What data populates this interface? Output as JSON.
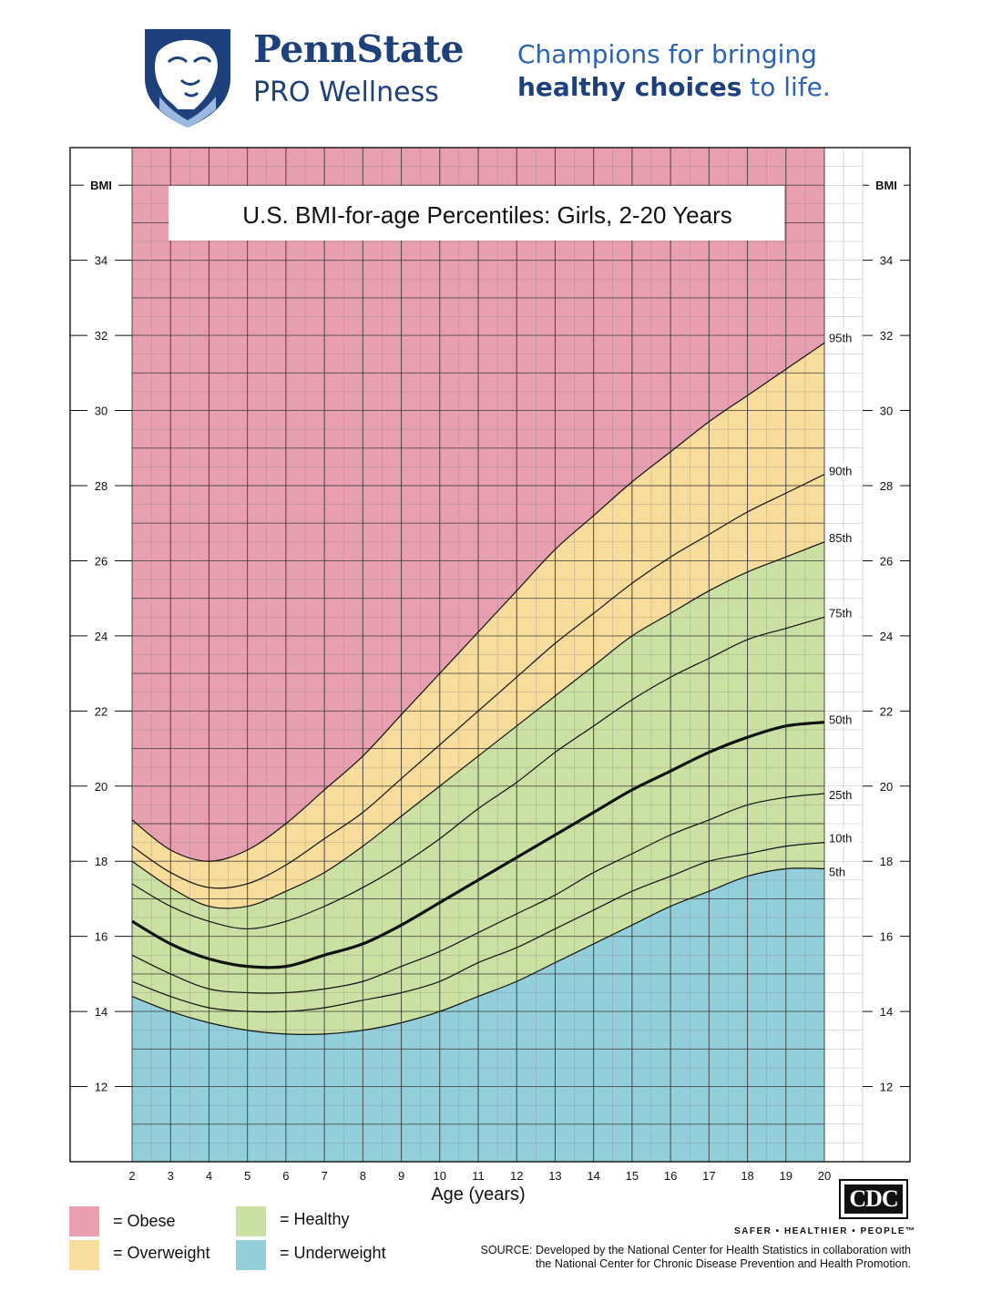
{
  "header": {
    "brand_name": "PennState",
    "brand_sub": "PRO Wellness",
    "tagline_line1": "Champions for bringing",
    "tagline_bold": "healthy choices",
    "tagline_rest": " to life."
  },
  "colors": {
    "obese": "#e8a0b0",
    "overweight": "#f7dc9c",
    "healthy": "#cbe1a3",
    "underweight": "#93cfdb",
    "brand_blue": "#1e407c"
  },
  "legend": [
    {
      "key": "obese",
      "label": "= Obese"
    },
    {
      "key": "overweight",
      "label": "= Overweight"
    },
    {
      "key": "healthy",
      "label": "= Healthy"
    },
    {
      "key": "underweight",
      "label": "= Underweight"
    }
  ],
  "footer": {
    "cdc_logo_text": "CDC",
    "cdc_slogan": "SAFER • HEALTHIER • PEOPLE™",
    "source_line1": "SOURCE: Developed by the National Center for Health Statistics in collaboration with",
    "source_line2": "the National Center for Chronic Disease Prevention and Health Promotion."
  },
  "chart_data": {
    "type": "area",
    "title": "U.S. BMI-for-age Percentiles: Girls, 2-20 Years",
    "xlabel": "Age (years)",
    "ylabel_left": "BMI",
    "ylabel_right": "BMI",
    "xlim": [
      2,
      20
    ],
    "ylim": [
      10,
      37
    ],
    "x_ticks": [
      2,
      3,
      4,
      5,
      6,
      7,
      8,
      9,
      10,
      11,
      12,
      13,
      14,
      15,
      16,
      17,
      18,
      19,
      20
    ],
    "y_ticks": [
      12,
      14,
      16,
      18,
      20,
      22,
      24,
      26,
      28,
      30,
      32,
      34
    ],
    "grid": true,
    "x": [
      2,
      3,
      4,
      5,
      6,
      7,
      8,
      9,
      10,
      11,
      12,
      13,
      14,
      15,
      16,
      17,
      18,
      19,
      20
    ],
    "series": [
      {
        "name": "95th",
        "values": [
          19.1,
          18.3,
          18.0,
          18.3,
          19.0,
          19.9,
          20.8,
          21.9,
          23.0,
          24.1,
          25.2,
          26.3,
          27.2,
          28.1,
          28.9,
          29.7,
          30.4,
          31.1,
          31.8
        ]
      },
      {
        "name": "90th",
        "values": [
          18.4,
          17.7,
          17.3,
          17.4,
          17.9,
          18.6,
          19.3,
          20.2,
          21.1,
          22.0,
          22.9,
          23.8,
          24.6,
          25.4,
          26.1,
          26.7,
          27.3,
          27.8,
          28.3
        ]
      },
      {
        "name": "85th",
        "values": [
          18.0,
          17.3,
          16.8,
          16.8,
          17.2,
          17.7,
          18.4,
          19.2,
          20.0,
          20.8,
          21.6,
          22.4,
          23.2,
          24.0,
          24.6,
          25.2,
          25.7,
          26.1,
          26.5
        ]
      },
      {
        "name": "75th",
        "values": [
          17.4,
          16.8,
          16.4,
          16.2,
          16.4,
          16.8,
          17.3,
          17.9,
          18.6,
          19.4,
          20.1,
          20.9,
          21.6,
          22.3,
          22.9,
          23.4,
          23.9,
          24.2,
          24.5
        ]
      },
      {
        "name": "50th",
        "values": [
          16.4,
          15.8,
          15.4,
          15.2,
          15.2,
          15.5,
          15.8,
          16.3,
          16.9,
          17.5,
          18.1,
          18.7,
          19.3,
          19.9,
          20.4,
          20.9,
          21.3,
          21.6,
          21.7
        ]
      },
      {
        "name": "25th",
        "values": [
          15.5,
          15.0,
          14.6,
          14.5,
          14.5,
          14.6,
          14.8,
          15.2,
          15.6,
          16.1,
          16.6,
          17.1,
          17.7,
          18.2,
          18.7,
          19.1,
          19.5,
          19.7,
          19.8
        ]
      },
      {
        "name": "10th",
        "values": [
          14.8,
          14.4,
          14.1,
          14.0,
          14.0,
          14.1,
          14.3,
          14.5,
          14.8,
          15.3,
          15.7,
          16.2,
          16.7,
          17.2,
          17.6,
          18.0,
          18.2,
          18.4,
          18.5
        ]
      },
      {
        "name": "5th",
        "values": [
          14.4,
          14.0,
          13.7,
          13.5,
          13.4,
          13.4,
          13.5,
          13.7,
          14.0,
          14.4,
          14.8,
          15.3,
          15.8,
          16.3,
          16.8,
          17.2,
          17.6,
          17.8,
          17.8
        ]
      }
    ],
    "zones": [
      {
        "name": "Obese",
        "from": "95th",
        "to": "top"
      },
      {
        "name": "Overweight",
        "from": "85th",
        "to": "95th"
      },
      {
        "name": "Healthy",
        "from": "5th",
        "to": "85th"
      },
      {
        "name": "Underweight",
        "from": "bottom",
        "to": "5th"
      }
    ]
  }
}
